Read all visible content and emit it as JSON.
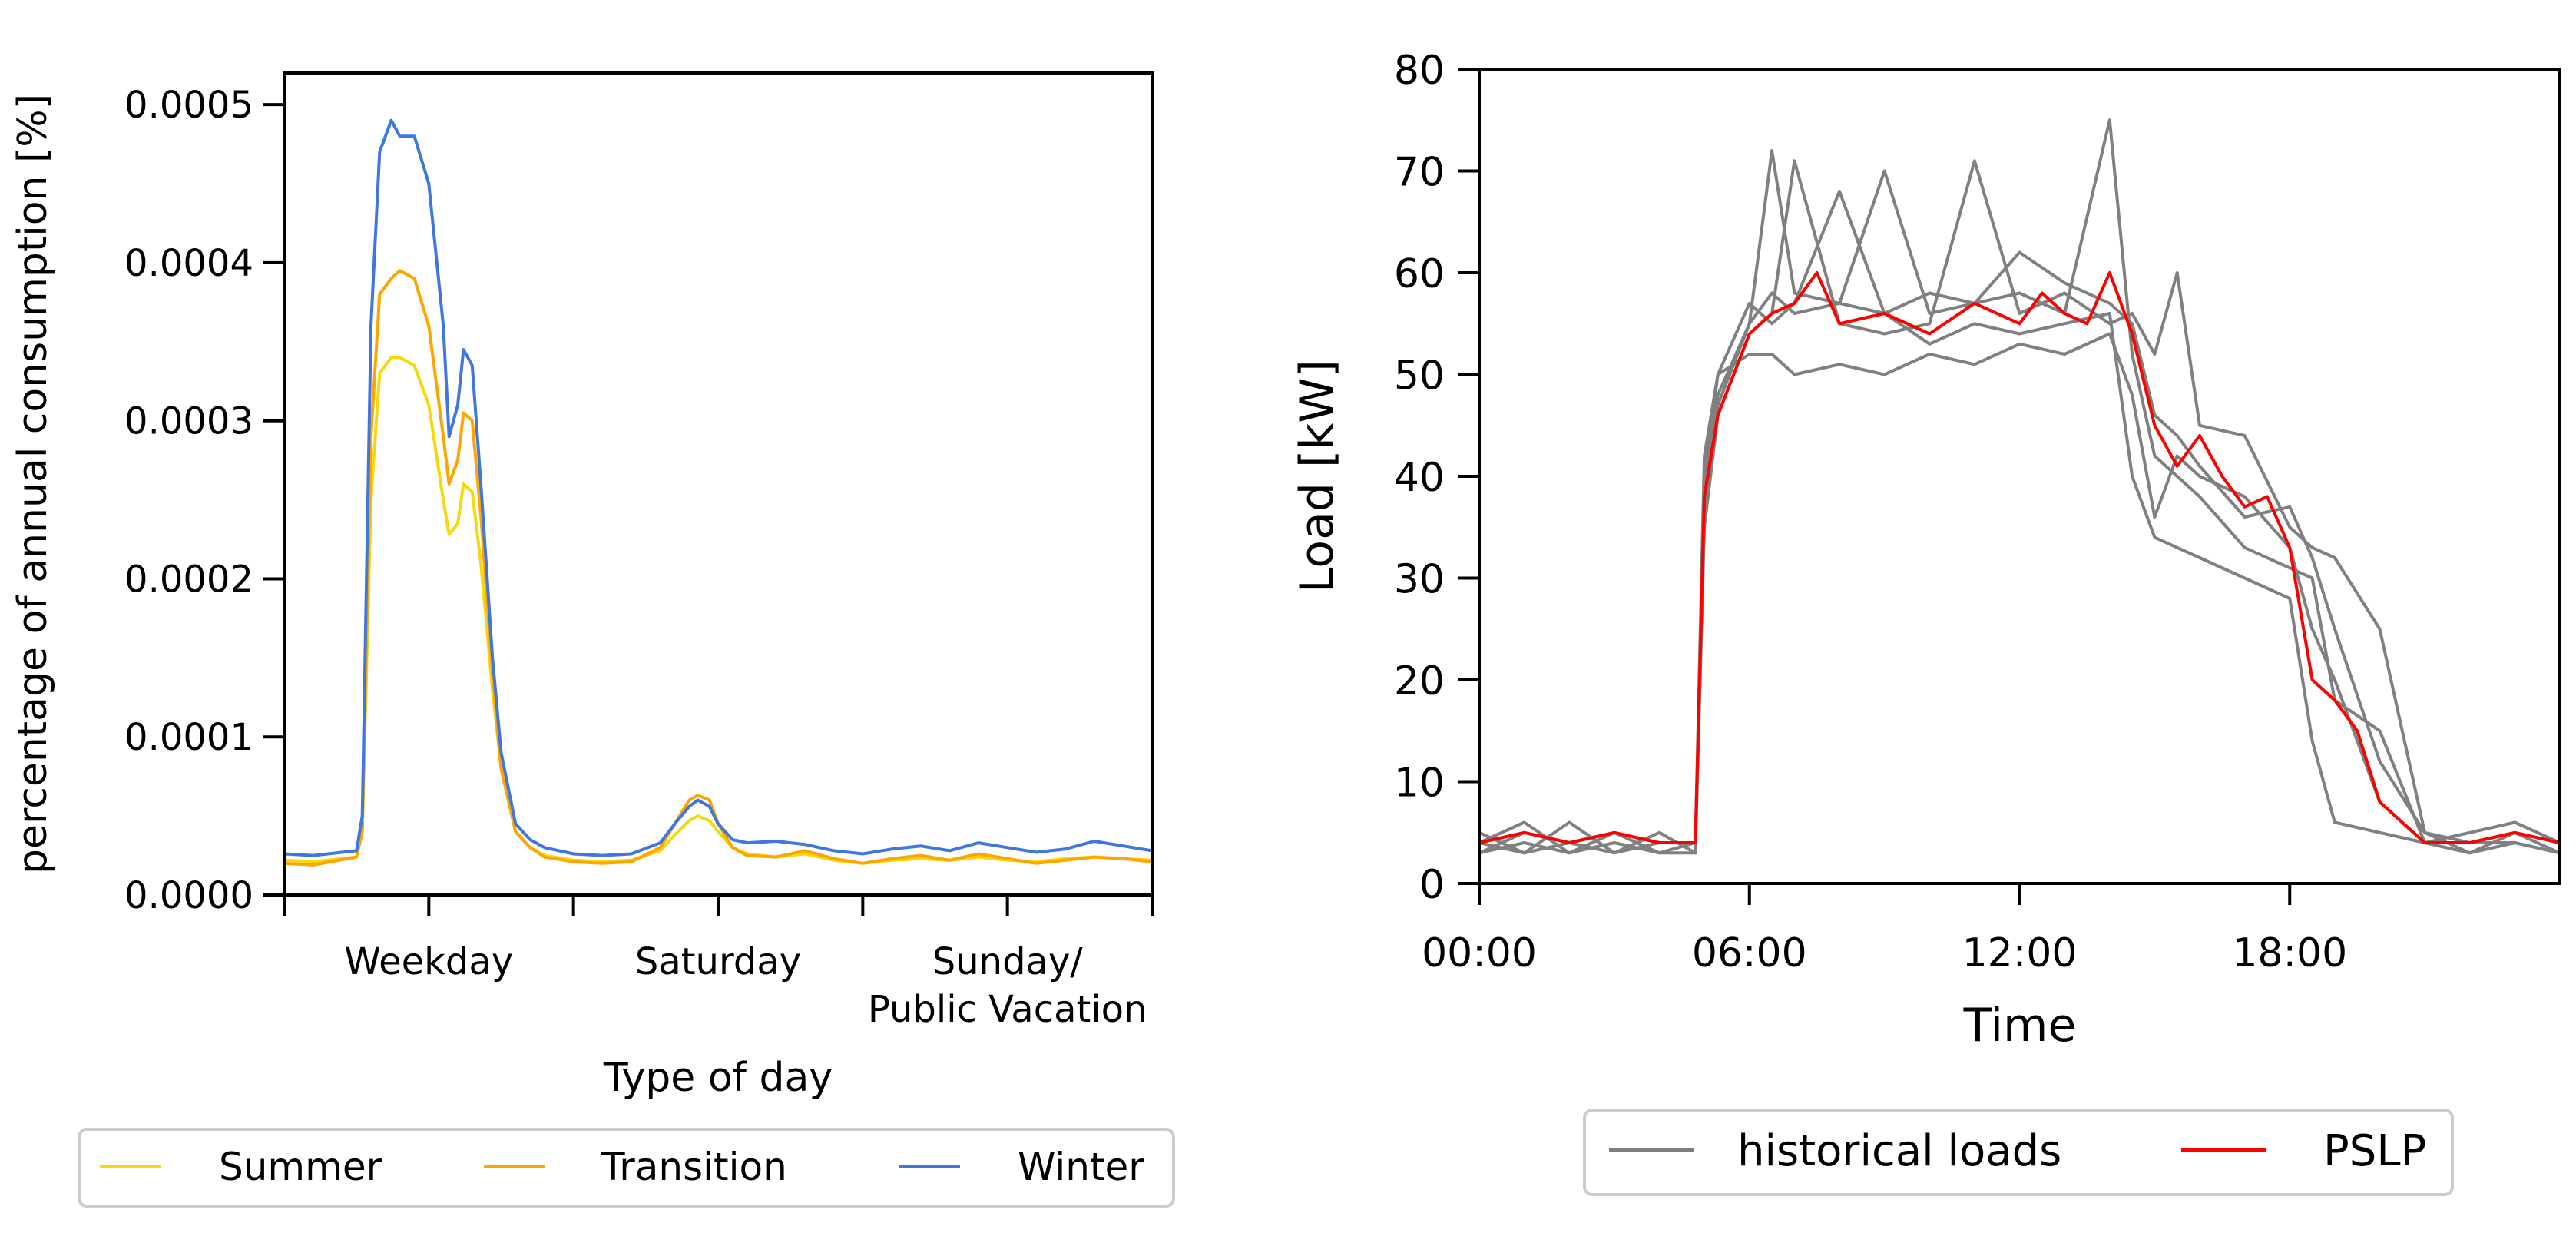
{
  "chart_data": [
    {
      "type": "line",
      "xlabel": "Type of day",
      "ylabel": "percentage of annual consumption [%]",
      "ylim": [
        0,
        0.00052
      ],
      "xlim": [
        0,
        3
      ],
      "x_ticks": [
        0,
        0.5,
        1,
        1.5,
        2,
        2.5,
        3
      ],
      "y_ticks": [
        "0.0000",
        "0.0001",
        "0.0002",
        "0.0003",
        "0.0004",
        "0.0005"
      ],
      "y_tick_values": [
        0,
        0.0001,
        0.0002,
        0.0003,
        0.0004,
        0.0005
      ],
      "category_labels": [
        {
          "x": 0.5,
          "lines": [
            "Weekday"
          ]
        },
        {
          "x": 1.5,
          "lines": [
            "Saturday"
          ]
        },
        {
          "x": 2.5,
          "lines": [
            "Sunday/",
            "Public Vacation"
          ]
        }
      ],
      "legend_position": "below",
      "series": [
        {
          "name": "Summer",
          "color": "#f5d90a",
          "x": [
            0,
            0.1,
            0.25,
            0.27,
            0.3,
            0.33,
            0.37,
            0.4,
            0.45,
            0.5,
            0.55,
            0.57,
            0.6,
            0.62,
            0.65,
            0.68,
            0.72,
            0.75,
            0.8,
            0.85,
            0.9,
            1.0,
            1.1,
            1.2,
            1.3,
            1.35,
            1.4,
            1.43,
            1.47,
            1.5,
            1.55,
            1.6,
            1.7,
            1.8,
            1.9,
            2.0,
            2.1,
            2.2,
            2.3,
            2.4,
            2.5,
            2.6,
            2.7,
            2.8,
            2.9,
            3.0
          ],
          "y": [
            2.2e-05,
            2.1e-05,
            2.4e-05,
            4e-05,
            0.00025,
            0.00033,
            0.00034,
            0.00034,
            0.000335,
            0.00031,
            0.00025,
            0.000228,
            0.000235,
            0.00026,
            0.000255,
            0.00021,
            0.00013,
            8e-05,
            4e-05,
            3e-05,
            2.5e-05,
            2.2e-05,
            2.1e-05,
            2.2e-05,
            2.8e-05,
            3.8e-05,
            4.7e-05,
            5e-05,
            4.7e-05,
            4e-05,
            3e-05,
            2.6e-05,
            2.4e-05,
            2.6e-05,
            2.2e-05,
            2e-05,
            2.2e-05,
            2.3e-05,
            2.2e-05,
            2.4e-05,
            2.2e-05,
            2.1e-05,
            2.3e-05,
            2.4e-05,
            2.3e-05,
            2.2e-05
          ]
        },
        {
          "name": "Transition",
          "color": "#ffa500",
          "x": [
            0,
            0.1,
            0.25,
            0.27,
            0.3,
            0.33,
            0.37,
            0.4,
            0.45,
            0.5,
            0.55,
            0.57,
            0.6,
            0.62,
            0.65,
            0.68,
            0.72,
            0.75,
            0.8,
            0.85,
            0.9,
            1.0,
            1.1,
            1.2,
            1.3,
            1.35,
            1.4,
            1.43,
            1.47,
            1.5,
            1.55,
            1.6,
            1.7,
            1.8,
            1.9,
            2.0,
            2.1,
            2.2,
            2.3,
            2.4,
            2.5,
            2.6,
            2.7,
            2.8,
            2.9,
            3.0
          ],
          "y": [
            2e-05,
            1.9e-05,
            2.4e-05,
            4e-05,
            0.00029,
            0.00038,
            0.00039,
            0.000395,
            0.00039,
            0.00036,
            0.00029,
            0.00026,
            0.000275,
            0.000305,
            0.0003,
            0.00024,
            0.00014,
            8e-05,
            4e-05,
            3e-05,
            2.4e-05,
            2.1e-05,
            2e-05,
            2.1e-05,
            3e-05,
            4.5e-05,
            6e-05,
            6.3e-05,
            6e-05,
            4.5e-05,
            3e-05,
            2.5e-05,
            2.4e-05,
            2.8e-05,
            2.3e-05,
            2e-05,
            2.3e-05,
            2.5e-05,
            2.2e-05,
            2.6e-05,
            2.3e-05,
            2e-05,
            2.2e-05,
            2.4e-05,
            2.3e-05,
            2.1e-05
          ]
        },
        {
          "name": "Winter",
          "color": "#3f76e0",
          "x": [
            0,
            0.1,
            0.25,
            0.27,
            0.3,
            0.33,
            0.37,
            0.4,
            0.45,
            0.5,
            0.55,
            0.57,
            0.6,
            0.62,
            0.65,
            0.68,
            0.72,
            0.75,
            0.8,
            0.85,
            0.9,
            1.0,
            1.1,
            1.2,
            1.3,
            1.35,
            1.4,
            1.43,
            1.47,
            1.5,
            1.55,
            1.6,
            1.7,
            1.8,
            1.9,
            2.0,
            2.1,
            2.2,
            2.3,
            2.4,
            2.5,
            2.6,
            2.7,
            2.8,
            2.9,
            3.0
          ],
          "y": [
            2.6e-05,
            2.5e-05,
            2.8e-05,
            5e-05,
            0.00036,
            0.00047,
            0.00049,
            0.00048,
            0.00048,
            0.00045,
            0.00036,
            0.00029,
            0.00031,
            0.000345,
            0.000335,
            0.00026,
            0.00015,
            9e-05,
            4.5e-05,
            3.5e-05,
            3e-05,
            2.6e-05,
            2.5e-05,
            2.6e-05,
            3.3e-05,
            4.5e-05,
            5.6e-05,
            6e-05,
            5.6e-05,
            4.5e-05,
            3.5e-05,
            3.3e-05,
            3.4e-05,
            3.2e-05,
            2.8e-05,
            2.6e-05,
            2.9e-05,
            3.1e-05,
            2.8e-05,
            3.3e-05,
            3e-05,
            2.7e-05,
            2.9e-05,
            3.4e-05,
            3.1e-05,
            2.8e-05
          ]
        }
      ]
    },
    {
      "type": "line",
      "xlabel": "Time",
      "ylabel": "Load [kW]",
      "ylim": [
        0,
        80
      ],
      "xlim": [
        0,
        24
      ],
      "x_ticks": [
        "00:00",
        "06:00",
        "12:00",
        "18:00"
      ],
      "x_tick_values": [
        0,
        6,
        12,
        18
      ],
      "y_ticks": [
        "0",
        "10",
        "20",
        "30",
        "40",
        "50",
        "60",
        "70",
        "80"
      ],
      "y_tick_values": [
        0,
        10,
        20,
        30,
        40,
        50,
        60,
        70,
        80
      ],
      "legend_position": "below",
      "legend": [
        {
          "name": "historical loads",
          "color": "#808080"
        },
        {
          "name": "PSLP",
          "color": "#ff0000"
        }
      ],
      "series": [
        {
          "name": "historical loads",
          "color": "#808080",
          "x": [
            0,
            1,
            2,
            3,
            4,
            4.8,
            5.0,
            5.3,
            6,
            6.5,
            7,
            8,
            9,
            10,
            11,
            12,
            13,
            14,
            14.5,
            15,
            15.5,
            16,
            17,
            18,
            18.5,
            19,
            20,
            21,
            22,
            23,
            24
          ],
          "y": [
            3,
            5,
            4,
            5,
            4,
            4,
            38,
            48,
            55,
            72,
            58,
            57,
            56,
            58,
            57,
            58,
            56,
            75,
            52,
            42,
            40,
            38,
            33,
            31,
            30,
            18,
            15,
            4,
            4,
            5,
            3
          ]
        },
        {
          "name": "historical loads",
          "color": "#808080",
          "x": [
            0,
            1,
            2,
            3,
            4,
            4.8,
            5.0,
            5.3,
            6,
            6.5,
            7,
            8,
            9,
            10,
            11,
            12,
            13,
            14,
            14.5,
            15,
            15.5,
            16,
            17,
            18,
            18.5,
            19,
            20,
            21,
            22,
            23,
            24
          ],
          "y": [
            4,
            3,
            6,
            3,
            5,
            3,
            35,
            46,
            54,
            56,
            71,
            55,
            54,
            55,
            71,
            56,
            58,
            55,
            56,
            52,
            60,
            45,
            44,
            35,
            33,
            32,
            25,
            5,
            4,
            4,
            3
          ]
        },
        {
          "name": "historical loads",
          "color": "#808080",
          "x": [
            0,
            1,
            2,
            3,
            4,
            4.8,
            5.0,
            5.3,
            6,
            6.5,
            7,
            8,
            9,
            10,
            11,
            12,
            13,
            14,
            14.5,
            15,
            15.5,
            16,
            17,
            18,
            18.5,
            19,
            20,
            21,
            22,
            23,
            24
          ],
          "y": [
            3,
            4,
            3,
            4,
            3,
            3,
            40,
            50,
            57,
            55,
            57,
            68,
            56,
            53,
            55,
            54,
            55,
            56,
            40,
            34,
            33,
            32,
            30,
            28,
            14,
            6,
            5,
            4,
            3,
            4,
            3
          ]
        },
        {
          "name": "historical loads",
          "color": "#808080",
          "x": [
            0,
            1,
            2,
            3,
            4,
            4.8,
            5.0,
            5.3,
            6,
            6.5,
            7,
            8,
            9,
            10,
            11,
            12,
            13,
            14,
            14.5,
            15,
            15.5,
            16,
            17,
            18,
            18.5,
            19,
            20,
            21,
            22,
            23,
            24
          ],
          "y": [
            5,
            3,
            4,
            3,
            4,
            4,
            42,
            50,
            52,
            52,
            50,
            51,
            50,
            52,
            51,
            53,
            52,
            54,
            48,
            36,
            42,
            40,
            38,
            33,
            25,
            20,
            8,
            4,
            5,
            6,
            4
          ]
        },
        {
          "name": "historical loads",
          "color": "#808080",
          "x": [
            0,
            1,
            2,
            3,
            4,
            4.8,
            5.0,
            5.3,
            6,
            6.5,
            7,
            8,
            9,
            10,
            11,
            12,
            13,
            14,
            14.5,
            15,
            15.5,
            16,
            17,
            18,
            18.5,
            19,
            20,
            21,
            22,
            23,
            24
          ],
          "y": [
            4,
            6,
            3,
            5,
            3,
            4,
            36,
            47,
            55,
            58,
            56,
            57,
            70,
            56,
            57,
            62,
            59,
            57,
            55,
            46,
            44,
            41,
            36,
            37,
            32,
            25,
            12,
            5,
            3,
            5,
            4
          ]
        },
        {
          "name": "PSLP",
          "color": "#ff0000",
          "x": [
            0,
            1,
            2,
            3,
            4,
            4.8,
            5.0,
            5.3,
            6,
            6.5,
            7,
            7.5,
            8,
            9,
            10,
            11,
            12,
            12.5,
            13,
            13.5,
            14,
            14.5,
            15,
            15.5,
            16,
            16.5,
            17,
            17.5,
            18,
            18.5,
            19,
            19.5,
            20,
            21,
            22,
            23,
            24
          ],
          "y": [
            4,
            5,
            4,
            5,
            4,
            4,
            38,
            46,
            54,
            56,
            57,
            60,
            55,
            56,
            54,
            57,
            55,
            58,
            56,
            55,
            60,
            54,
            45,
            41,
            44,
            40,
            37,
            38,
            33,
            20,
            18,
            15,
            8,
            4,
            4,
            5,
            4
          ]
        }
      ]
    }
  ]
}
